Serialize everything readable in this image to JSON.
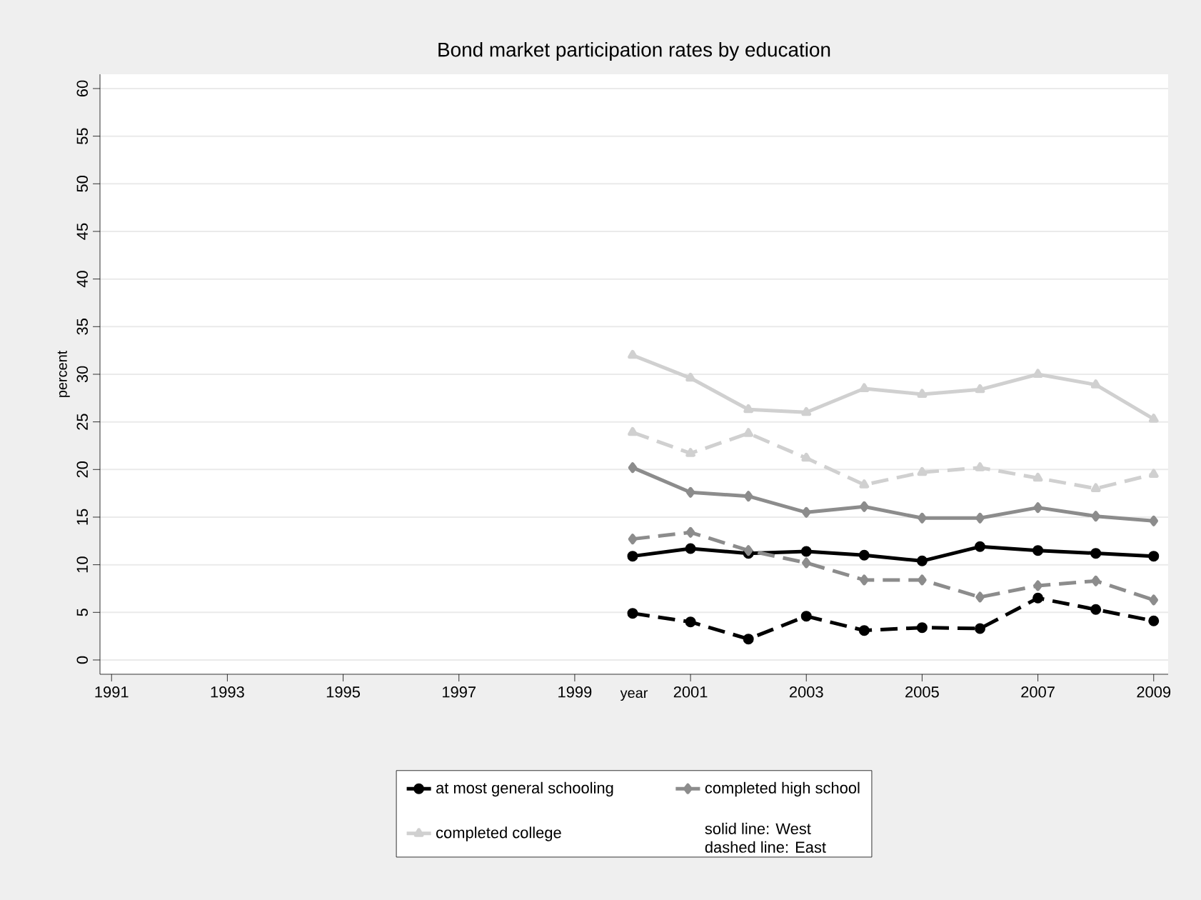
{
  "chart_data": {
    "type": "line",
    "title": "Bond market participation rates by education",
    "xlabel": "year",
    "ylabel": "percent",
    "x": [
      2000,
      2001,
      2002,
      2003,
      2004,
      2005,
      2006,
      2007,
      2008,
      2009
    ],
    "series": [
      {
        "name": "at most general schooling",
        "color": "#000000",
        "marker": "circle",
        "line_style": "solid",
        "values": [
          10.9,
          11.7,
          11.2,
          11.4,
          11.0,
          10.4,
          11.9,
          11.5,
          11.2,
          10.9
        ]
      },
      {
        "name": "completed high school",
        "color": "#8c8c8c",
        "marker": "diamond",
        "line_style": "solid",
        "values": [
          20.2,
          17.6,
          17.2,
          15.5,
          16.1,
          14.9,
          14.9,
          16.0,
          15.1,
          14.6
        ]
      },
      {
        "name": "completed college",
        "color": "#d0d0d0",
        "marker": "triangle",
        "line_style": "solid",
        "values": [
          32.0,
          29.6,
          26.3,
          26.0,
          28.5,
          27.9,
          28.4,
          30.0,
          28.9,
          25.3
        ]
      },
      {
        "color": "#000000",
        "marker": "circle",
        "line_style": "dashed",
        "values": [
          4.9,
          4.0,
          2.2,
          4.6,
          3.1,
          3.4,
          3.3,
          6.5,
          5.3,
          4.1
        ]
      },
      {
        "color": "#8c8c8c",
        "marker": "diamond",
        "line_style": "dashed",
        "values": [
          12.7,
          13.4,
          11.5,
          10.2,
          8.4,
          8.4,
          6.6,
          7.8,
          8.3,
          6.3
        ]
      },
      {
        "color": "#d0d0d0",
        "marker": "triangle",
        "line_style": "dashed",
        "values": [
          23.9,
          21.7,
          23.8,
          21.2,
          18.4,
          19.7,
          20.2,
          19.1,
          18.0,
          19.5
        ]
      }
    ],
    "xlim": [
      1990.8,
      2009.25
    ],
    "xticks": [
      1991,
      1993,
      1995,
      1997,
      1999,
      2001,
      2003,
      2005,
      2007,
      2009
    ],
    "ylim": [
      -1.5,
      61.5
    ],
    "yticks": [
      0,
      5,
      10,
      15,
      20,
      25,
      30,
      35,
      40,
      45,
      50,
      55,
      60
    ],
    "grid": "y",
    "legend": "bottom",
    "annotations": [
      "solid line: West",
      "dashed line: East"
    ]
  }
}
